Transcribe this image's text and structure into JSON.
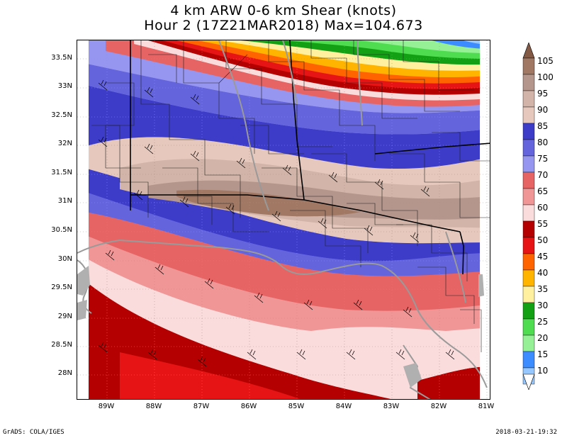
{
  "title_line1": "4 km ARW 0-6 km Shear (knots)",
  "title_line2": "Hour 2 (17Z21MAR2018) Max=104.673",
  "lat_labels": [
    "33.5N",
    "33N",
    "32.5N",
    "32N",
    "31.5N",
    "31N",
    "30.5N",
    "30N",
    "29.5N",
    "29N",
    "28.5N",
    "28N"
  ],
  "lon_labels": [
    "89W",
    "88W",
    "87W",
    "86W",
    "85W",
    "84W",
    "83W",
    "82W",
    "81W"
  ],
  "legend": {
    "labels": [
      "105",
      "100",
      "95",
      "90",
      "85",
      "80",
      "75",
      "70",
      "65",
      "60",
      "55",
      "50",
      "45",
      "40",
      "35",
      "30",
      "25",
      "20",
      "15",
      "10"
    ],
    "colors": [
      "#a07864",
      "#b4968c",
      "#d2b4a8",
      "#e6c8bd",
      "#3c3cc8",
      "#6464dc",
      "#9696f0",
      "#e66464",
      "#f09696",
      "#fadcdc",
      "#b40000",
      "#e61414",
      "#ff6400",
      "#ffb400",
      "#fff0a0",
      "#14a014",
      "#50dc50",
      "#96f096",
      "#3c8cff",
      "#96c8ff"
    ]
  },
  "footer_left": "GrADS: COLA/IGES",
  "footer_right": "2018-03-21-19:32"
}
